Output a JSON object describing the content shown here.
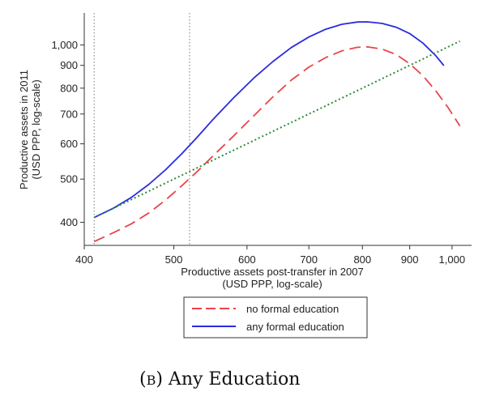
{
  "chart_data": {
    "type": "line",
    "xlabel": [
      "Productive assets post-transfer in 2007",
      "(USD PPP, log-scale)"
    ],
    "ylabel": [
      "Productive assets in 2011",
      "(USD PPP, log-scale)"
    ],
    "x_scale": "log",
    "y_scale": "log",
    "xlim": [
      400,
      1050
    ],
    "ylim": [
      355,
      1180
    ],
    "x_ticks": [
      {
        "value": 400,
        "label": "400"
      },
      {
        "value": 500,
        "label": "500"
      },
      {
        "value": 600,
        "label": "600"
      },
      {
        "value": 700,
        "label": "700"
      },
      {
        "value": 800,
        "label": "800"
      },
      {
        "value": 900,
        "label": "900"
      },
      {
        "value": 1000,
        "label": "1,000"
      }
    ],
    "y_ticks": [
      {
        "value": 400,
        "label": "400"
      },
      {
        "value": 500,
        "label": "500"
      },
      {
        "value": 600,
        "label": "600"
      },
      {
        "value": 700,
        "label": "700"
      },
      {
        "value": 800,
        "label": "800"
      },
      {
        "value": 900,
        "label": "900"
      },
      {
        "value": 1000,
        "label": "1,000"
      }
    ],
    "vertical_reference_lines": [
      410,
      520
    ],
    "grid": false,
    "legend_position": "bottom",
    "series": [
      {
        "name": "no formal education",
        "color": "#e8464a",
        "dash": "dashed",
        "x": [
          410,
          430,
          450,
          470,
          490,
          510,
          530,
          550,
          580,
          610,
          640,
          670,
          700,
          730,
          760,
          790,
          810,
          840,
          870,
          900,
          930,
          960,
          990,
          1020
        ],
        "y": [
          362,
          379,
          397,
          420,
          449,
          483,
          520,
          561,
          624,
          693,
          765,
          834,
          892,
          937,
          970,
          988,
          990,
          979,
          952,
          908,
          853,
          790,
          724,
          658
        ]
      },
      {
        "name": "any formal education",
        "color": "#2b2be0",
        "dash": "solid",
        "x": [
          410,
          430,
          450,
          470,
          490,
          510,
          530,
          550,
          580,
          610,
          640,
          670,
          700,
          730,
          760,
          790,
          810,
          840,
          870,
          900,
          930,
          960,
          980
        ],
        "y": [
          410,
          430,
          455,
          487,
          525,
          570,
          621,
          677,
          760,
          842,
          918,
          987,
          1042,
          1085,
          1113,
          1126,
          1127,
          1118,
          1096,
          1061,
          1010,
          947,
          899
        ]
      },
      {
        "name": "",
        "color": "#2e8b3a",
        "dash": "dotted",
        "x": [
          410,
          1020
        ],
        "y": [
          410,
          1020
        ]
      }
    ]
  },
  "caption": {
    "prefix_big": "(",
    "letter_big": "B",
    "suffix_small": "B",
    "text": ") Any Education"
  }
}
